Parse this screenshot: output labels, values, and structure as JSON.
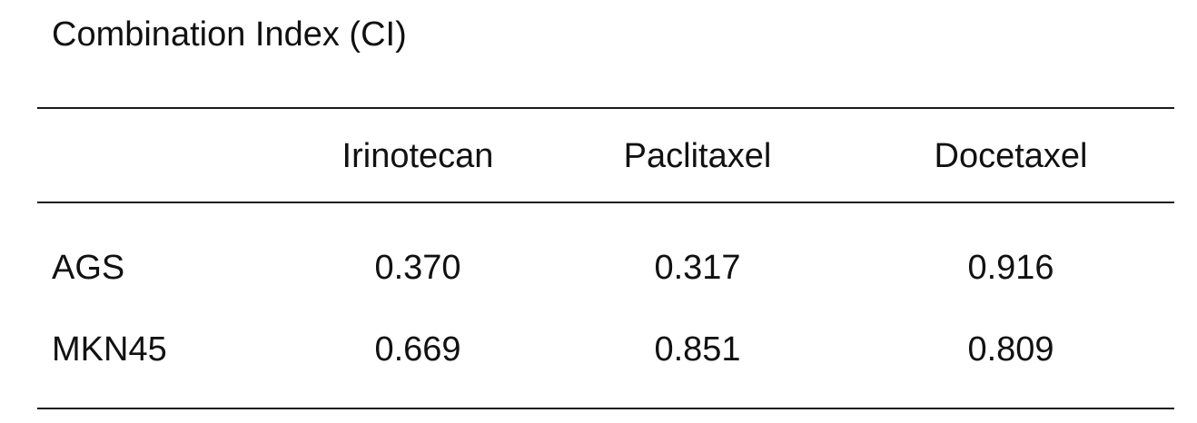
{
  "title": "Combination Index (CI)",
  "table": {
    "columns": [
      "",
      "Irinotecan",
      "Paclitaxel",
      "Docetaxel"
    ],
    "rows": [
      {
        "cell_line": "AGS",
        "values": [
          "0.370",
          "0.317",
          "0.916"
        ]
      },
      {
        "cell_line": "MKN45",
        "values": [
          "0.669",
          "0.851",
          "0.809"
        ]
      }
    ]
  }
}
